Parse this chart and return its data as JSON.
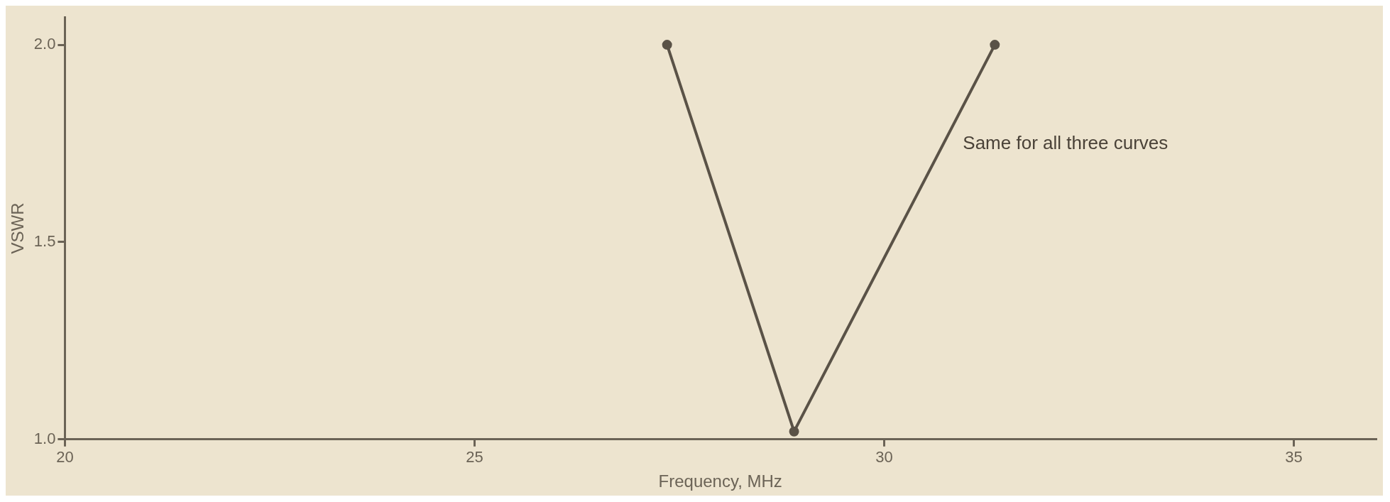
{
  "chart_data": {
    "type": "line",
    "xlabel": "Frequency, MHz",
    "ylabel": "VSWR",
    "x": [
      27.35,
      28.9,
      31.35
    ],
    "series": [
      {
        "color": "#5a5247",
        "values": [
          2.0,
          1.02,
          2.0
        ]
      }
    ],
    "xlim": [
      20,
      36
    ],
    "ylim": [
      1.0,
      2.07
    ],
    "xticks": [
      20,
      25,
      30,
      35
    ],
    "yticks": [
      {
        "value": 1,
        "label": "1.0"
      },
      {
        "value": 1.5,
        "label": "1.5"
      },
      {
        "value": 2,
        "label": "2.0"
      }
    ],
    "annotations": [
      "Same for all three curves"
    ],
    "marker": "circle",
    "line_style": "solid",
    "grid": false,
    "legend": false
  }
}
